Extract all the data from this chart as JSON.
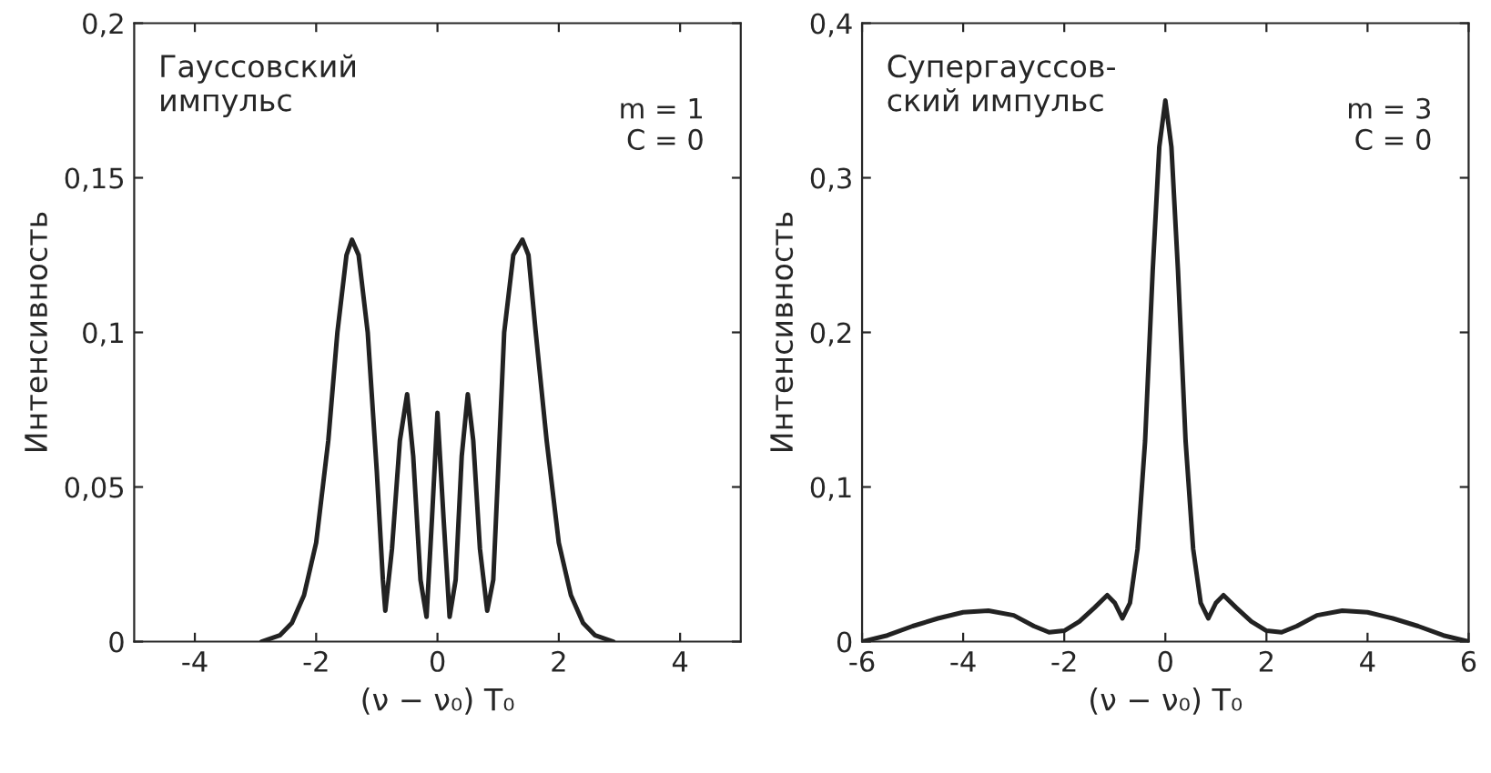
{
  "chart_data": [
    {
      "type": "line",
      "xlabel": "(ν − ν₀) T₀",
      "ylabel": "Интенсивность",
      "annotations": [
        "Гауссовский\nимпульс",
        "m = 1\nC = 0"
      ],
      "xlim": [
        -5,
        5
      ],
      "xticks": [
        -4,
        -2,
        0,
        2,
        4
      ],
      "ylim": [
        0,
        0.2
      ],
      "yticks": [
        0,
        {
          "value": 0.05,
          "label": "0,05"
        },
        {
          "value": 0.1,
          "label": "0,1"
        },
        {
          "value": 0.15,
          "label": "0,15"
        },
        {
          "value": 0.2,
          "label": "0,2"
        }
      ],
      "series": [
        {
          "color": "#222222",
          "x": [
            -2.9,
            -2.6,
            -2.4,
            -2.2,
            -2.0,
            -1.8,
            -1.65,
            -1.5,
            -1.41,
            -1.3,
            -1.15,
            -1.0,
            -0.9,
            -0.86,
            -0.75,
            -0.62,
            -0.5,
            -0.4,
            -0.28,
            -0.18,
            -0.09,
            0.0,
            0.1,
            0.2,
            0.3,
            0.4,
            0.5,
            0.59,
            0.7,
            0.82,
            0.92,
            1.0,
            1.1,
            1.25,
            1.4,
            1.5,
            1.62,
            1.8,
            2.0,
            2.2,
            2.4,
            2.6,
            2.9
          ],
          "values": [
            0.0,
            0.002,
            0.006,
            0.015,
            0.032,
            0.065,
            0.1,
            0.125,
            0.13,
            0.125,
            0.1,
            0.055,
            0.02,
            0.01,
            0.03,
            0.065,
            0.08,
            0.06,
            0.02,
            0.008,
            0.04,
            0.074,
            0.04,
            0.008,
            0.02,
            0.06,
            0.08,
            0.065,
            0.03,
            0.01,
            0.02,
            0.055,
            0.1,
            0.125,
            0.13,
            0.125,
            0.1,
            0.065,
            0.032,
            0.015,
            0.006,
            0.002,
            0.0
          ]
        }
      ]
    },
    {
      "type": "line",
      "xlabel": "(ν − ν₀) T₀",
      "ylabel": "Интенсивность",
      "annotations": [
        "Супергауссов-\nский импульс",
        "m = 3\nC = 0"
      ],
      "xlim": [
        -6,
        6
      ],
      "xticks": [
        -6,
        -4,
        -2,
        0,
        2,
        4,
        6
      ],
      "ylim": [
        0,
        0.4
      ],
      "yticks": [
        0,
        {
          "value": 0.1,
          "label": "0,1"
        },
        {
          "value": 0.2,
          "label": "0,2"
        },
        {
          "value": 0.3,
          "label": "0,3"
        },
        {
          "value": 0.4,
          "label": "0,4"
        }
      ],
      "series": [
        {
          "color": "#222222",
          "x": [
            -6.0,
            -5.5,
            -5.0,
            -4.5,
            -4.0,
            -3.5,
            -3.0,
            -2.6,
            -2.3,
            -2.0,
            -1.7,
            -1.4,
            -1.15,
            -1.0,
            -0.85,
            -0.7,
            -0.55,
            -0.4,
            -0.25,
            -0.12,
            0.0,
            0.12,
            0.25,
            0.4,
            0.55,
            0.7,
            0.85,
            1.0,
            1.15,
            1.4,
            1.7,
            2.0,
            2.3,
            2.6,
            3.0,
            3.5,
            4.0,
            4.5,
            5.0,
            5.5,
            6.0
          ],
          "values": [
            0.0,
            0.004,
            0.01,
            0.015,
            0.019,
            0.02,
            0.017,
            0.01,
            0.006,
            0.007,
            0.013,
            0.022,
            0.03,
            0.025,
            0.015,
            0.025,
            0.06,
            0.13,
            0.24,
            0.32,
            0.35,
            0.32,
            0.24,
            0.13,
            0.06,
            0.025,
            0.015,
            0.025,
            0.03,
            0.022,
            0.013,
            0.007,
            0.006,
            0.01,
            0.017,
            0.02,
            0.019,
            0.015,
            0.01,
            0.004,
            0.0
          ]
        }
      ]
    }
  ]
}
